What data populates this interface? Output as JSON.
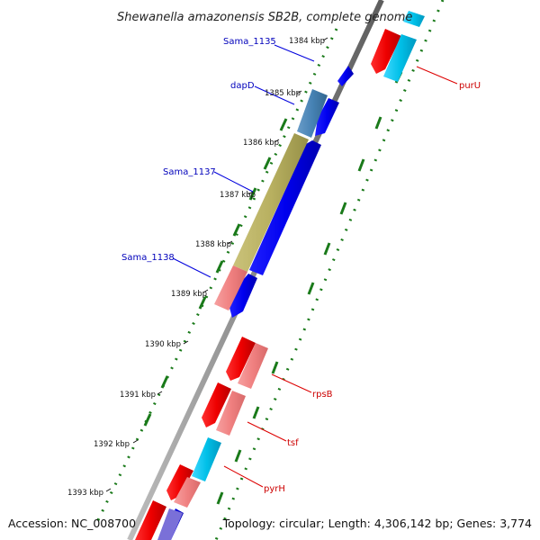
{
  "title": "Shewanella amazonensis SB2B, complete genome",
  "footer": {
    "accession": "Accession: NC_008700",
    "summary": "Topology: circular; Length: 4,306,142 bp; Genes: 3,774"
  },
  "ticks": [
    "1384 kbp",
    "1385 kbp",
    "1386 kbp",
    "1387 kbp",
    "1388 kbp",
    "1389 kbp",
    "1390 kbp",
    "1391 kbp",
    "1392 kbp",
    "1393 kbp"
  ],
  "gene_labels": {
    "forward": [
      "Sama_1135",
      "dapD",
      "Sama_1137",
      "Sama_1138"
    ],
    "reverse": [
      "purU",
      "rpsB",
      "tsf",
      "pyrH"
    ]
  },
  "colors": {
    "forward_label": "#0000bb",
    "reverse_label": "#cc0000",
    "forward_cds": "#0000ee",
    "reverse_cds": "#ee0000",
    "cog_pink": "#f08080",
    "cog_cyan": "#00c0e8",
    "cog_steelblue": "#4682b4",
    "cog_khaki": "#b8b060",
    "backbone": "#8a8a8a",
    "gc_skew": "#1a7a1a"
  }
}
